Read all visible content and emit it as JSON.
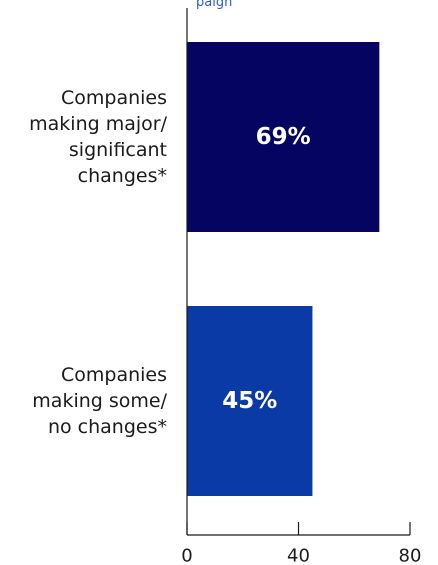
{
  "chart_data": {
    "type": "bar",
    "orientation": "horizontal",
    "categories": [
      [
        "Companies",
        "making major/",
        "significant",
        "changes*"
      ],
      [
        "Companies",
        "making some/",
        "no changes*"
      ]
    ],
    "values": [
      69,
      45
    ],
    "value_labels": [
      "69%",
      "45%"
    ],
    "colors": [
      "#050561",
      "#0a3aa6"
    ],
    "xlim": [
      0,
      80
    ],
    "xticks": [
      0,
      40,
      80
    ],
    "xtick_labels": [
      "0",
      "40",
      "80"
    ],
    "grid": false
  }
}
